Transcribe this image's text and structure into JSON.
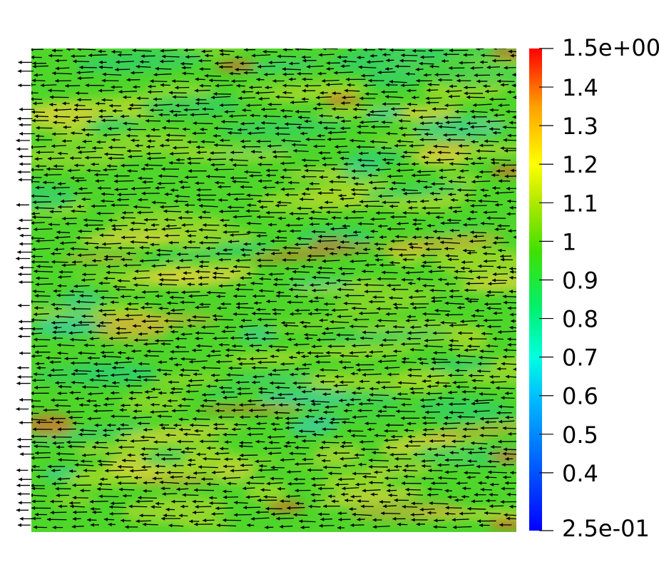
{
  "chart_data": {
    "type": "heatmap",
    "description_shown": "vector field glyphs over scalar magnitude field",
    "colorbar": {
      "min": 0.25,
      "max": 1.5,
      "min_label": "2.5e-01",
      "max_label": "1.5e+00",
      "ticks": [
        {
          "value": 1.4,
          "label": "1.4"
        },
        {
          "value": 1.3,
          "label": "1.3"
        },
        {
          "value": 1.2,
          "label": "1.2"
        },
        {
          "value": 1.1,
          "label": "1.1"
        },
        {
          "value": 1.0,
          "label": "1"
        },
        {
          "value": 0.9,
          "label": "0.9"
        },
        {
          "value": 0.8,
          "label": "0.8"
        },
        {
          "value": 0.7,
          "label": "0.7"
        },
        {
          "value": 0.6,
          "label": "0.6"
        },
        {
          "value": 0.5,
          "label": "0.5"
        },
        {
          "value": 0.4,
          "label": "0.4"
        }
      ],
      "colormap": [
        "#0000ff",
        "#00a0ff",
        "#00ffff",
        "#00ff60",
        "#30e000",
        "#9fe000",
        "#ffff00",
        "#ffa000",
        "#ff0000"
      ]
    },
    "field": {
      "dominant_value_range": [
        0.75,
        1.0
      ],
      "arrow_direction": "leftward",
      "arrow_color": "#000000"
    }
  }
}
